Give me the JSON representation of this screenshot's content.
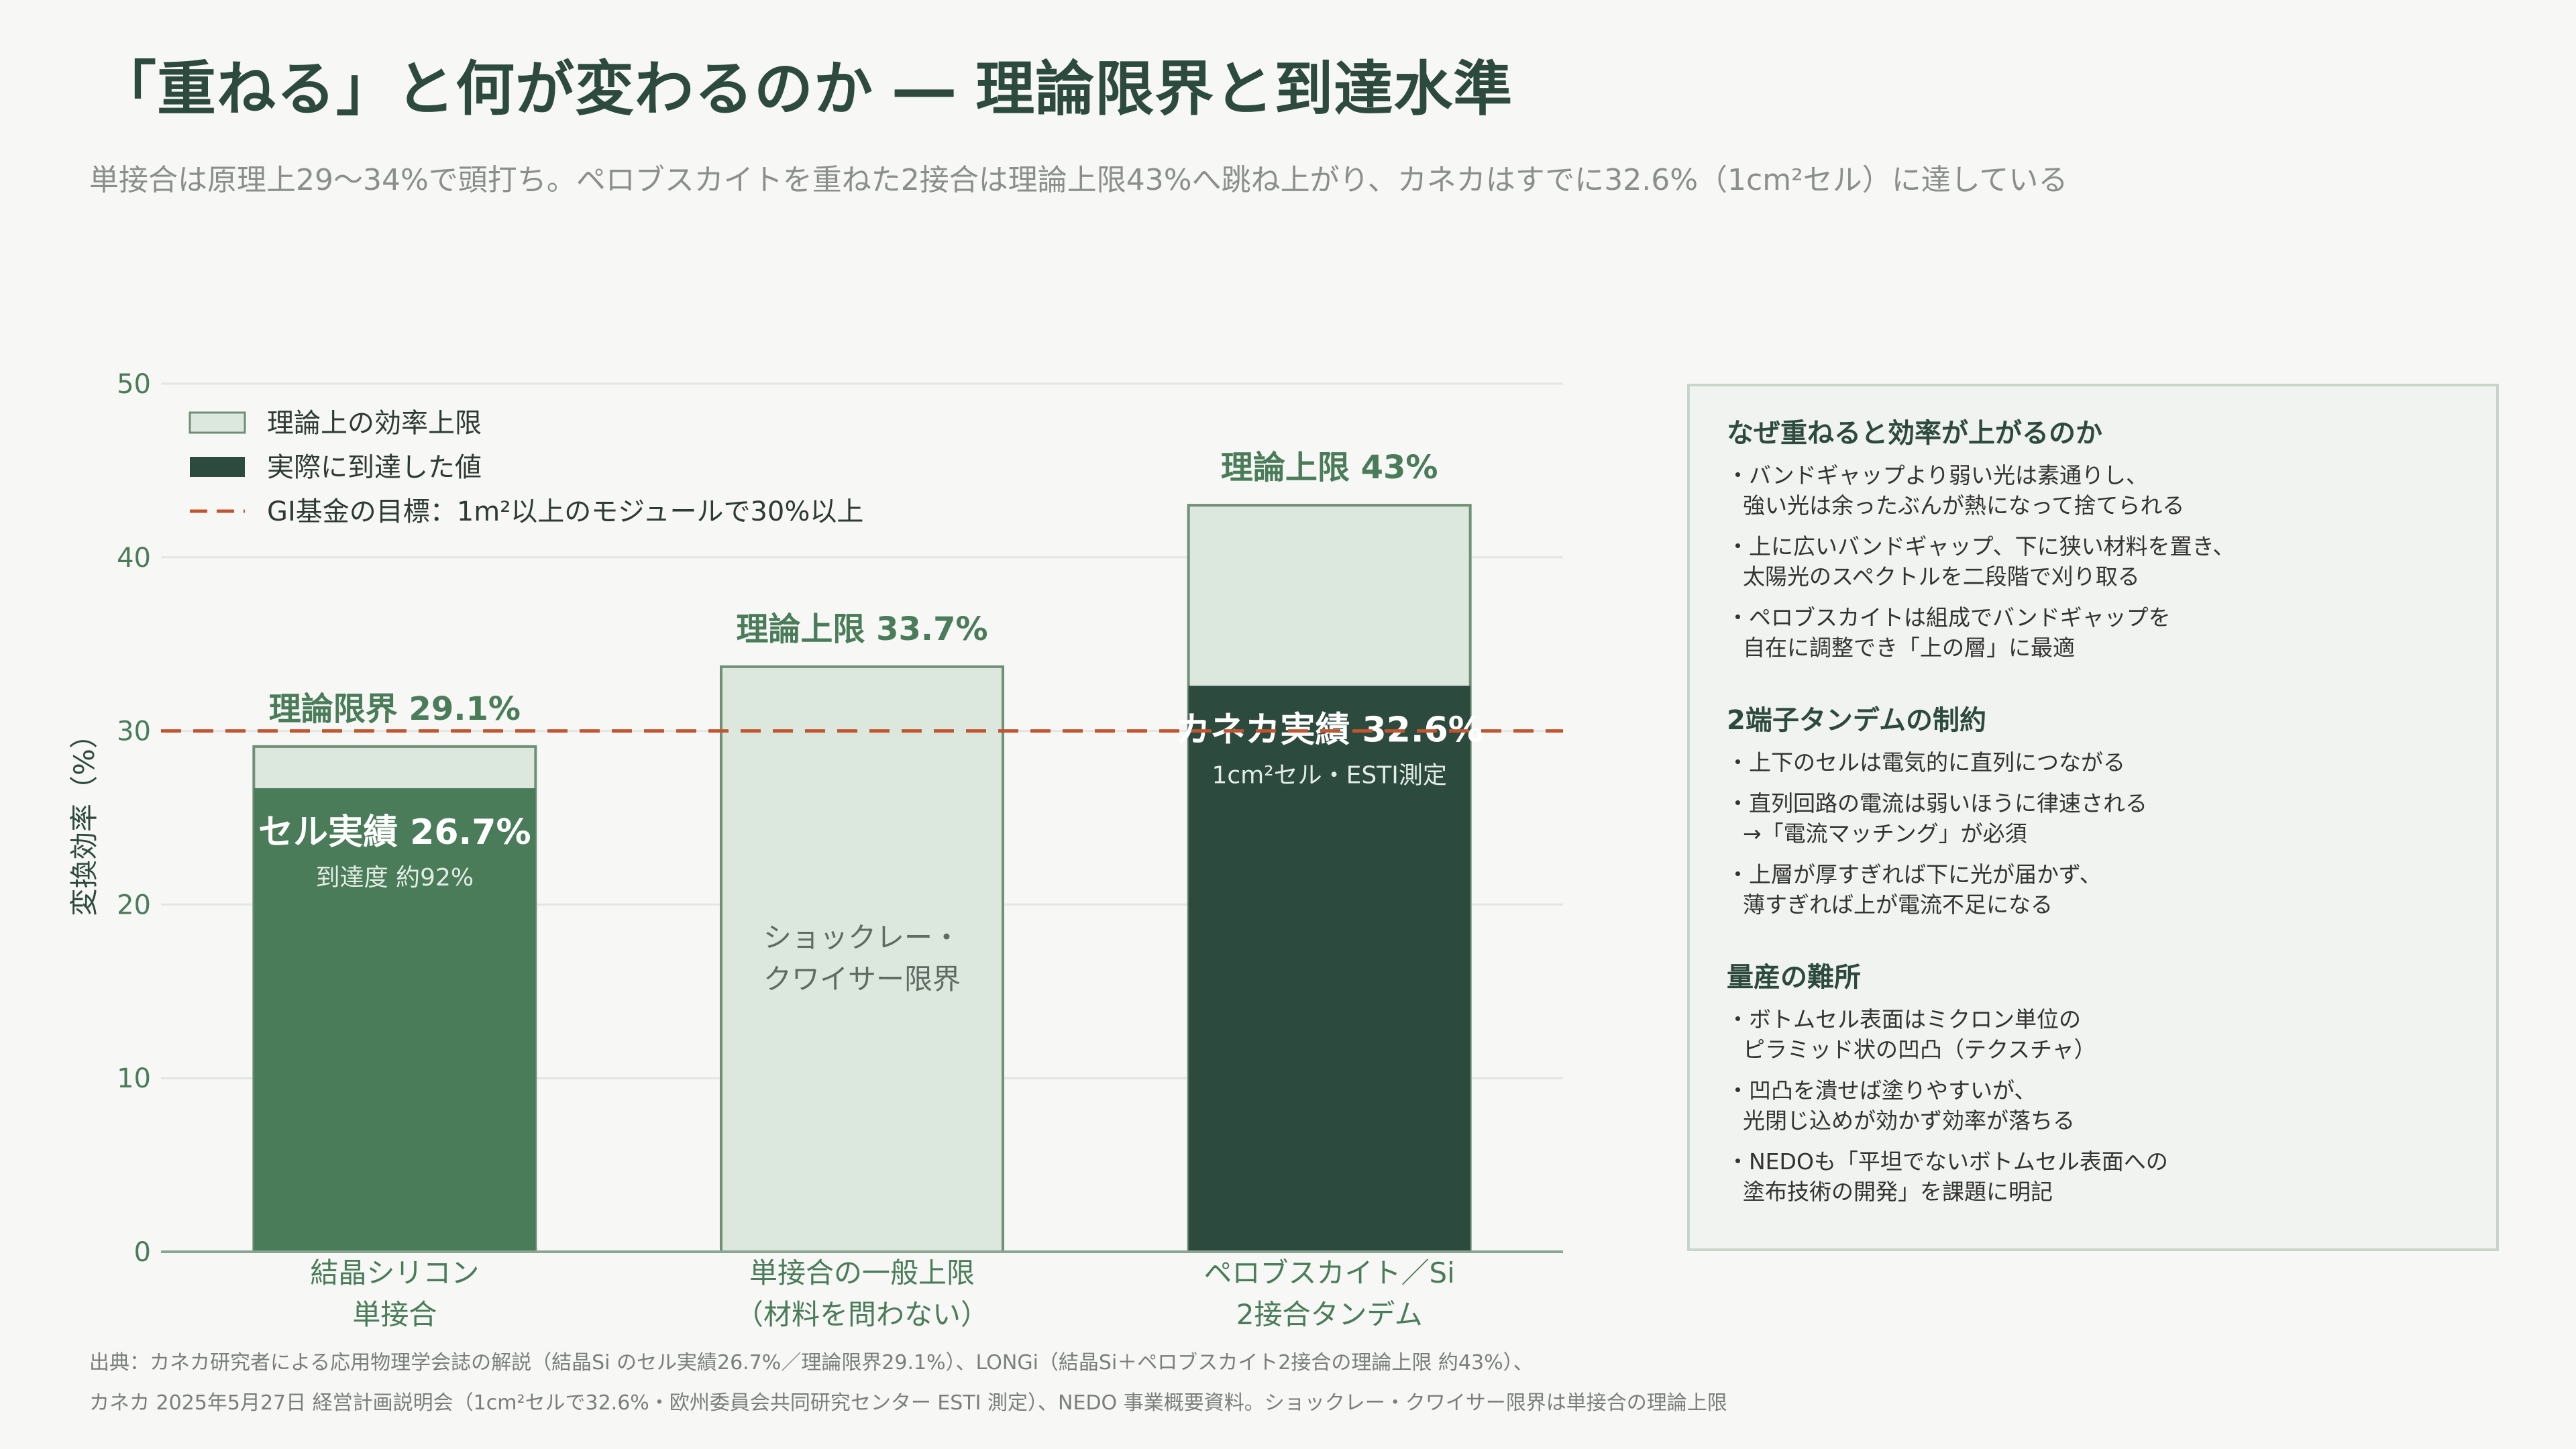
{
  "title": "「重ねる」と何が変わるのか ― 理論限界と到達水準",
  "subtitle": "単接合は原理上29〜34%で頭打ち。ペロブスカイトを重ねた2接合は理論上限43%へ跳ね上がり、カネカはすでに32.6%（1cm²セル）に達している",
  "colors": {
    "theory_fill": "#dce7de",
    "theory_stroke": "#6f8f77",
    "si_actual": "#4a7c59",
    "tandem_actual": "#2d4a3e",
    "target_line": "#c0562f",
    "axis_text": "#4a7c59",
    "panel_bg": "#f0f3ef"
  },
  "chart_data": {
    "type": "bar",
    "ylabel": "変換効率（%）",
    "ylim": [
      0,
      50
    ],
    "yticks": [
      0,
      10,
      20,
      30,
      40,
      50
    ],
    "grid": true,
    "legend_position": "top-left",
    "legend": [
      {
        "label": "理論上の効率上限",
        "kind": "theory"
      },
      {
        "label": "実際に到達した値",
        "kind": "actual"
      },
      {
        "label": "GI基金の目標：1m²以上のモジュールで30%以上",
        "kind": "target"
      }
    ],
    "target_value": 30,
    "categories": [
      {
        "lines": [
          "結晶シリコン",
          "単接合"
        ],
        "theoretical": 29.1,
        "theory_label": "理論限界 29.1%",
        "actual": 26.7,
        "actual_label": "セル実績 26.7%",
        "actual_sublabel": "到達度 約92%",
        "actual_color": "si_actual"
      },
      {
        "lines": [
          "単接合の一般上限",
          "（材料を問わない）"
        ],
        "theoretical": 33.7,
        "theory_label": "理論上限 33.7%",
        "actual": null,
        "inner_label_lines": [
          "ショックレー・",
          "クワイサー限界"
        ]
      },
      {
        "lines": [
          "ペロブスカイト／Si",
          "2接合タンデム"
        ],
        "theoretical": 43,
        "theory_label": "理論上限 43%",
        "actual": 32.6,
        "actual_label": "カネカ実績 32.6%",
        "actual_sublabel": "1cm²セル・ESTI測定",
        "actual_color": "tandem_actual"
      }
    ]
  },
  "panel": {
    "sections": [
      {
        "title": "なぜ重ねると効率が上がるのか",
        "bullets": [
          [
            "・バンドギャップより弱い光は素通りし、",
            "強い光は余ったぶんが熱になって捨てられる"
          ],
          [
            "・上に広いバンドギャップ、下に狭い材料を置き、",
            "太陽光のスペクトルを二段階で刈り取る"
          ],
          [
            "・ペロブスカイトは組成でバンドギャップを",
            "自在に調整でき「上の層」に最適"
          ]
        ]
      },
      {
        "title": "2端子タンデムの制約",
        "bullets": [
          [
            "・上下のセルは電気的に直列につながる"
          ],
          [
            "・直列回路の電流は弱いほうに律速される",
            "→「電流マッチング」が必須"
          ],
          [
            "・上層が厚すぎれば下に光が届かず、",
            "薄すぎれば上が電流不足になる"
          ]
        ]
      },
      {
        "title": "量産の難所",
        "bullets": [
          [
            "・ボトムセル表面はミクロン単位の",
            "ピラミッド状の凹凸（テクスチャ）"
          ],
          [
            "・凹凸を潰せば塗りやすいが、",
            "光閉じ込めが効かず効率が落ちる"
          ],
          [
            "・NEDOも「平坦でないボトムセル表面への",
            "塗布技術の開発」を課題に明記"
          ]
        ]
      }
    ]
  },
  "footnote": [
    "出典：カネカ研究者による応用物理学会誌の解説（結晶Si のセル実績26.7%／理論限界29.1%）、LONGi（結晶Si＋ペロブスカイト2接合の理論上限 約43%）、",
    "カネカ 2025年5月27日 経営計画説明会（1cm²セルで32.6%・欧州委員会共同研究センター ESTI 測定）、NEDO 事業概要資料。ショックレー・クワイサー限界は単接合の理論上限"
  ]
}
